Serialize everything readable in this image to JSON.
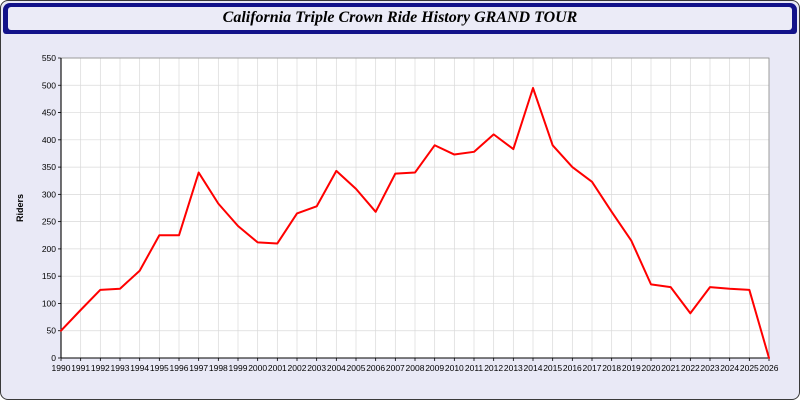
{
  "header": {
    "title": "California Triple Crown Ride History GRAND TOUR"
  },
  "colors": {
    "page_bg": "#e9e9f6",
    "header_bg": "#12128a",
    "header_box_bg": "#ebebf7",
    "outer_border": "#3a3a3a",
    "grid": "#d9d9d9",
    "plot_bg": "#ffffff",
    "axis": "#000000",
    "line": "#ff0000"
  },
  "chart_data": {
    "type": "line",
    "title": "California Triple Crown Ride History GRAND TOUR",
    "xlabel": "",
    "ylabel": "Riders",
    "x": [
      1990,
      1991,
      1992,
      1993,
      1994,
      1995,
      1996,
      1997,
      1998,
      1999,
      2000,
      2001,
      2002,
      2003,
      2004,
      2005,
      2006,
      2007,
      2008,
      2009,
      2010,
      2011,
      2012,
      2013,
      2014,
      2015,
      2016,
      2017,
      2018,
      2019,
      2020,
      2021,
      2022,
      2023,
      2024,
      2025,
      2026
    ],
    "series": [
      {
        "name": "Riders",
        "color": "#ff0000",
        "values": [
          50,
          88,
          125,
          127,
          160,
          225,
          225,
          340,
          283,
          242,
          212,
          210,
          265,
          278,
          343,
          310,
          268,
          338,
          340,
          390,
          373,
          378,
          410,
          383,
          495,
          390,
          350,
          323,
          268,
          215,
          135,
          130,
          82,
          130,
          127,
          125,
          0
        ]
      }
    ],
    "ylim": [
      0,
      550
    ],
    "ytick_step": 50,
    "grid": true,
    "legend": "none"
  }
}
